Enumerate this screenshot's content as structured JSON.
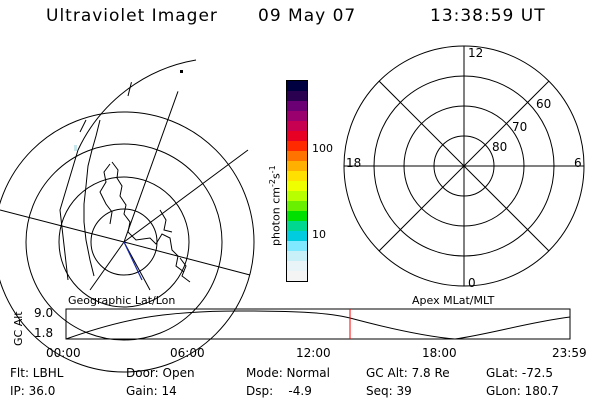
{
  "header": {
    "instrument": "Ultraviolet Imager",
    "date": "09 May 07",
    "time": "13:38:59 UT"
  },
  "geo_panel": {
    "label": "Geographic Lat/Lon"
  },
  "colorbar": {
    "ylabel_main": "photon cm",
    "ylabel_exp1": "-2",
    "ylabel_mid": "s",
    "ylabel_exp2": "-1",
    "tick_100": "100",
    "tick_10": "10",
    "colors": [
      "#000040",
      "#2a0050",
      "#6a0074",
      "#9a006e",
      "#c80052",
      "#e80024",
      "#ff2a00",
      "#ff7300",
      "#ffb000",
      "#ffe000",
      "#f0ff00",
      "#b8ff00",
      "#68f000",
      "#00e000",
      "#00d890",
      "#00cce0",
      "#80e8ff",
      "#c8f0f8",
      "#e8f4f8",
      "#f4f4f4"
    ]
  },
  "polar_panel": {
    "label": "Apex MLat/MLT",
    "mlt_12": "12",
    "mlt_18": "18",
    "mlt_6": "6",
    "mlt_0": "0",
    "lat_60": "60",
    "lat_70": "70",
    "lat_80": "80"
  },
  "altitude_plot": {
    "ylabel": "GC Alt",
    "ytick_top": "9.0",
    "ytick_bottom": "1.8",
    "xticks": [
      "00:00",
      "06:00",
      "12:00",
      "18:00",
      "23:59"
    ],
    "current_time_marker_color": "#ff0000"
  },
  "info": {
    "filter": "Flt: LBHL",
    "ip": "IP: 36.0",
    "door": "Door: Open",
    "gain": "Gain: 14",
    "mode": "Mode: Normal",
    "dsp": "Dsp:    -4.9",
    "gc_alt": "GC Alt: 7.8 Re",
    "seq": "Seq: 39",
    "glat": "GLat: -72.5",
    "glon": "GLon: 180.7"
  }
}
